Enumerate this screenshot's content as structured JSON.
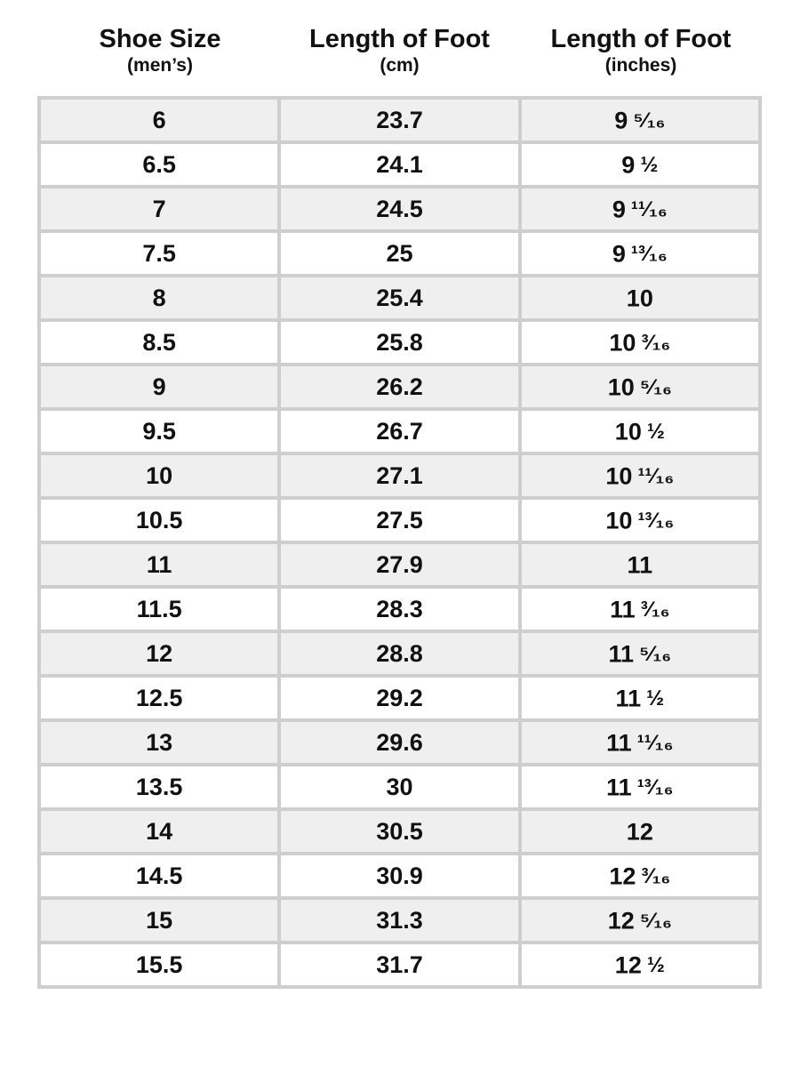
{
  "headers": [
    {
      "title": "Shoe Size",
      "subtitle": "(men’s)"
    },
    {
      "title": "Length of Foot",
      "subtitle": "(cm)"
    },
    {
      "title": "Length of Foot",
      "subtitle": "(inches)"
    }
  ],
  "rows": [
    {
      "size": "6",
      "cm": "23.7",
      "in_whole": "9",
      "in_frac": "⁵⁄₁₆"
    },
    {
      "size": "6.5",
      "cm": "24.1",
      "in_whole": "9",
      "in_frac": "½"
    },
    {
      "size": "7",
      "cm": "24.5",
      "in_whole": "9",
      "in_frac": "¹¹⁄₁₆"
    },
    {
      "size": "7.5",
      "cm": "25",
      "in_whole": "9",
      "in_frac": "¹³⁄₁₆"
    },
    {
      "size": "8",
      "cm": "25.4",
      "in_whole": "10",
      "in_frac": ""
    },
    {
      "size": "8.5",
      "cm": "25.8",
      "in_whole": "10",
      "in_frac": "³⁄₁₆"
    },
    {
      "size": "9",
      "cm": "26.2",
      "in_whole": "10",
      "in_frac": "⁵⁄₁₆"
    },
    {
      "size": "9.5",
      "cm": "26.7",
      "in_whole": "10",
      "in_frac": "½"
    },
    {
      "size": "10",
      "cm": "27.1",
      "in_whole": "10",
      "in_frac": "¹¹⁄₁₆"
    },
    {
      "size": "10.5",
      "cm": "27.5",
      "in_whole": "10",
      "in_frac": "¹³⁄₁₆"
    },
    {
      "size": "11",
      "cm": "27.9",
      "in_whole": "11",
      "in_frac": ""
    },
    {
      "size": "11.5",
      "cm": "28.3",
      "in_whole": "11",
      "in_frac": "³⁄₁₆"
    },
    {
      "size": "12",
      "cm": "28.8",
      "in_whole": "11",
      "in_frac": "⁵⁄₁₆"
    },
    {
      "size": "12.5",
      "cm": "29.2",
      "in_whole": "11",
      "in_frac": "½"
    },
    {
      "size": "13",
      "cm": "29.6",
      "in_whole": "11",
      "in_frac": "¹¹⁄₁₆"
    },
    {
      "size": "13.5",
      "cm": "30",
      "in_whole": "11",
      "in_frac": "¹³⁄₁₆"
    },
    {
      "size": "14",
      "cm": "30.5",
      "in_whole": "12",
      "in_frac": ""
    },
    {
      "size": "14.5",
      "cm": "30.9",
      "in_whole": "12",
      "in_frac": "³⁄₁₆"
    },
    {
      "size": "15",
      "cm": "31.3",
      "in_whole": "12",
      "in_frac": "⁵⁄₁₆"
    },
    {
      "size": "15.5",
      "cm": "31.7",
      "in_whole": "12",
      "in_frac": "½"
    }
  ],
  "colors": {
    "border": "#cecece",
    "stripe": "#efefef",
    "text": "#111111"
  }
}
